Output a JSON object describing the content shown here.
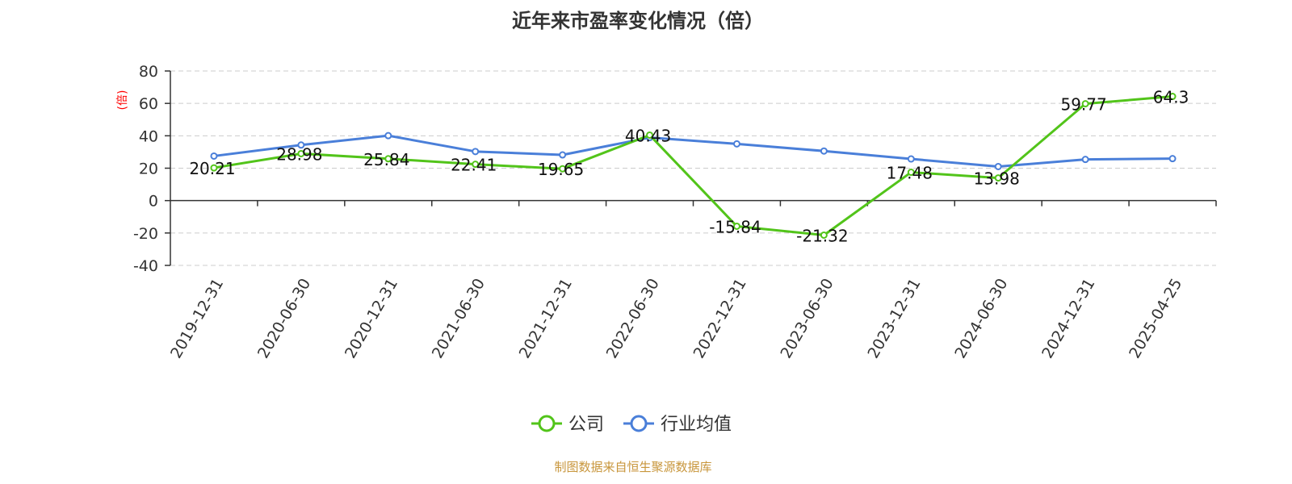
{
  "chart_data": {
    "type": "line",
    "title": "近年来市盈率变化情况（倍）",
    "ylabel": "(倍)",
    "ylim": [
      -40,
      80
    ],
    "yticks": [
      80,
      60,
      40,
      20,
      0,
      -20,
      -40
    ],
    "grid": true,
    "legend_position": "bottom",
    "categories": [
      "2019-12-31",
      "2020-06-30",
      "2020-12-31",
      "2021-06-30",
      "2021-12-31",
      "2022-06-30",
      "2022-12-31",
      "2023-06-30",
      "2023-12-31",
      "2024-06-30",
      "2024-12-31",
      "2025-04-25"
    ],
    "series": [
      {
        "name": "公司",
        "color": "#52c41a",
        "values": [
          20.21,
          28.98,
          25.84,
          22.41,
          19.65,
          40.43,
          -15.84,
          -21.32,
          17.48,
          13.98,
          59.77,
          64.3
        ],
        "labels": [
          "20.21",
          "28.98",
          "25.84",
          "22.41",
          "19.65",
          "40.43",
          "-15.84",
          "-21.32",
          "17.48",
          "13.98",
          "59.77",
          "64.3"
        ]
      },
      {
        "name": "行业均值",
        "color": "#4a7fd9",
        "values": [
          27.5,
          34.3,
          40.1,
          30.3,
          28.2,
          38.9,
          35.0,
          30.6,
          25.7,
          21.0,
          25.4,
          25.9
        ]
      }
    ]
  },
  "source": "制图数据来自恒生聚源数据库",
  "source_color": "#c8963c",
  "ylabel_color": "#ff0000",
  "axis_color": "#333333",
  "grid_color": "#cccccc"
}
